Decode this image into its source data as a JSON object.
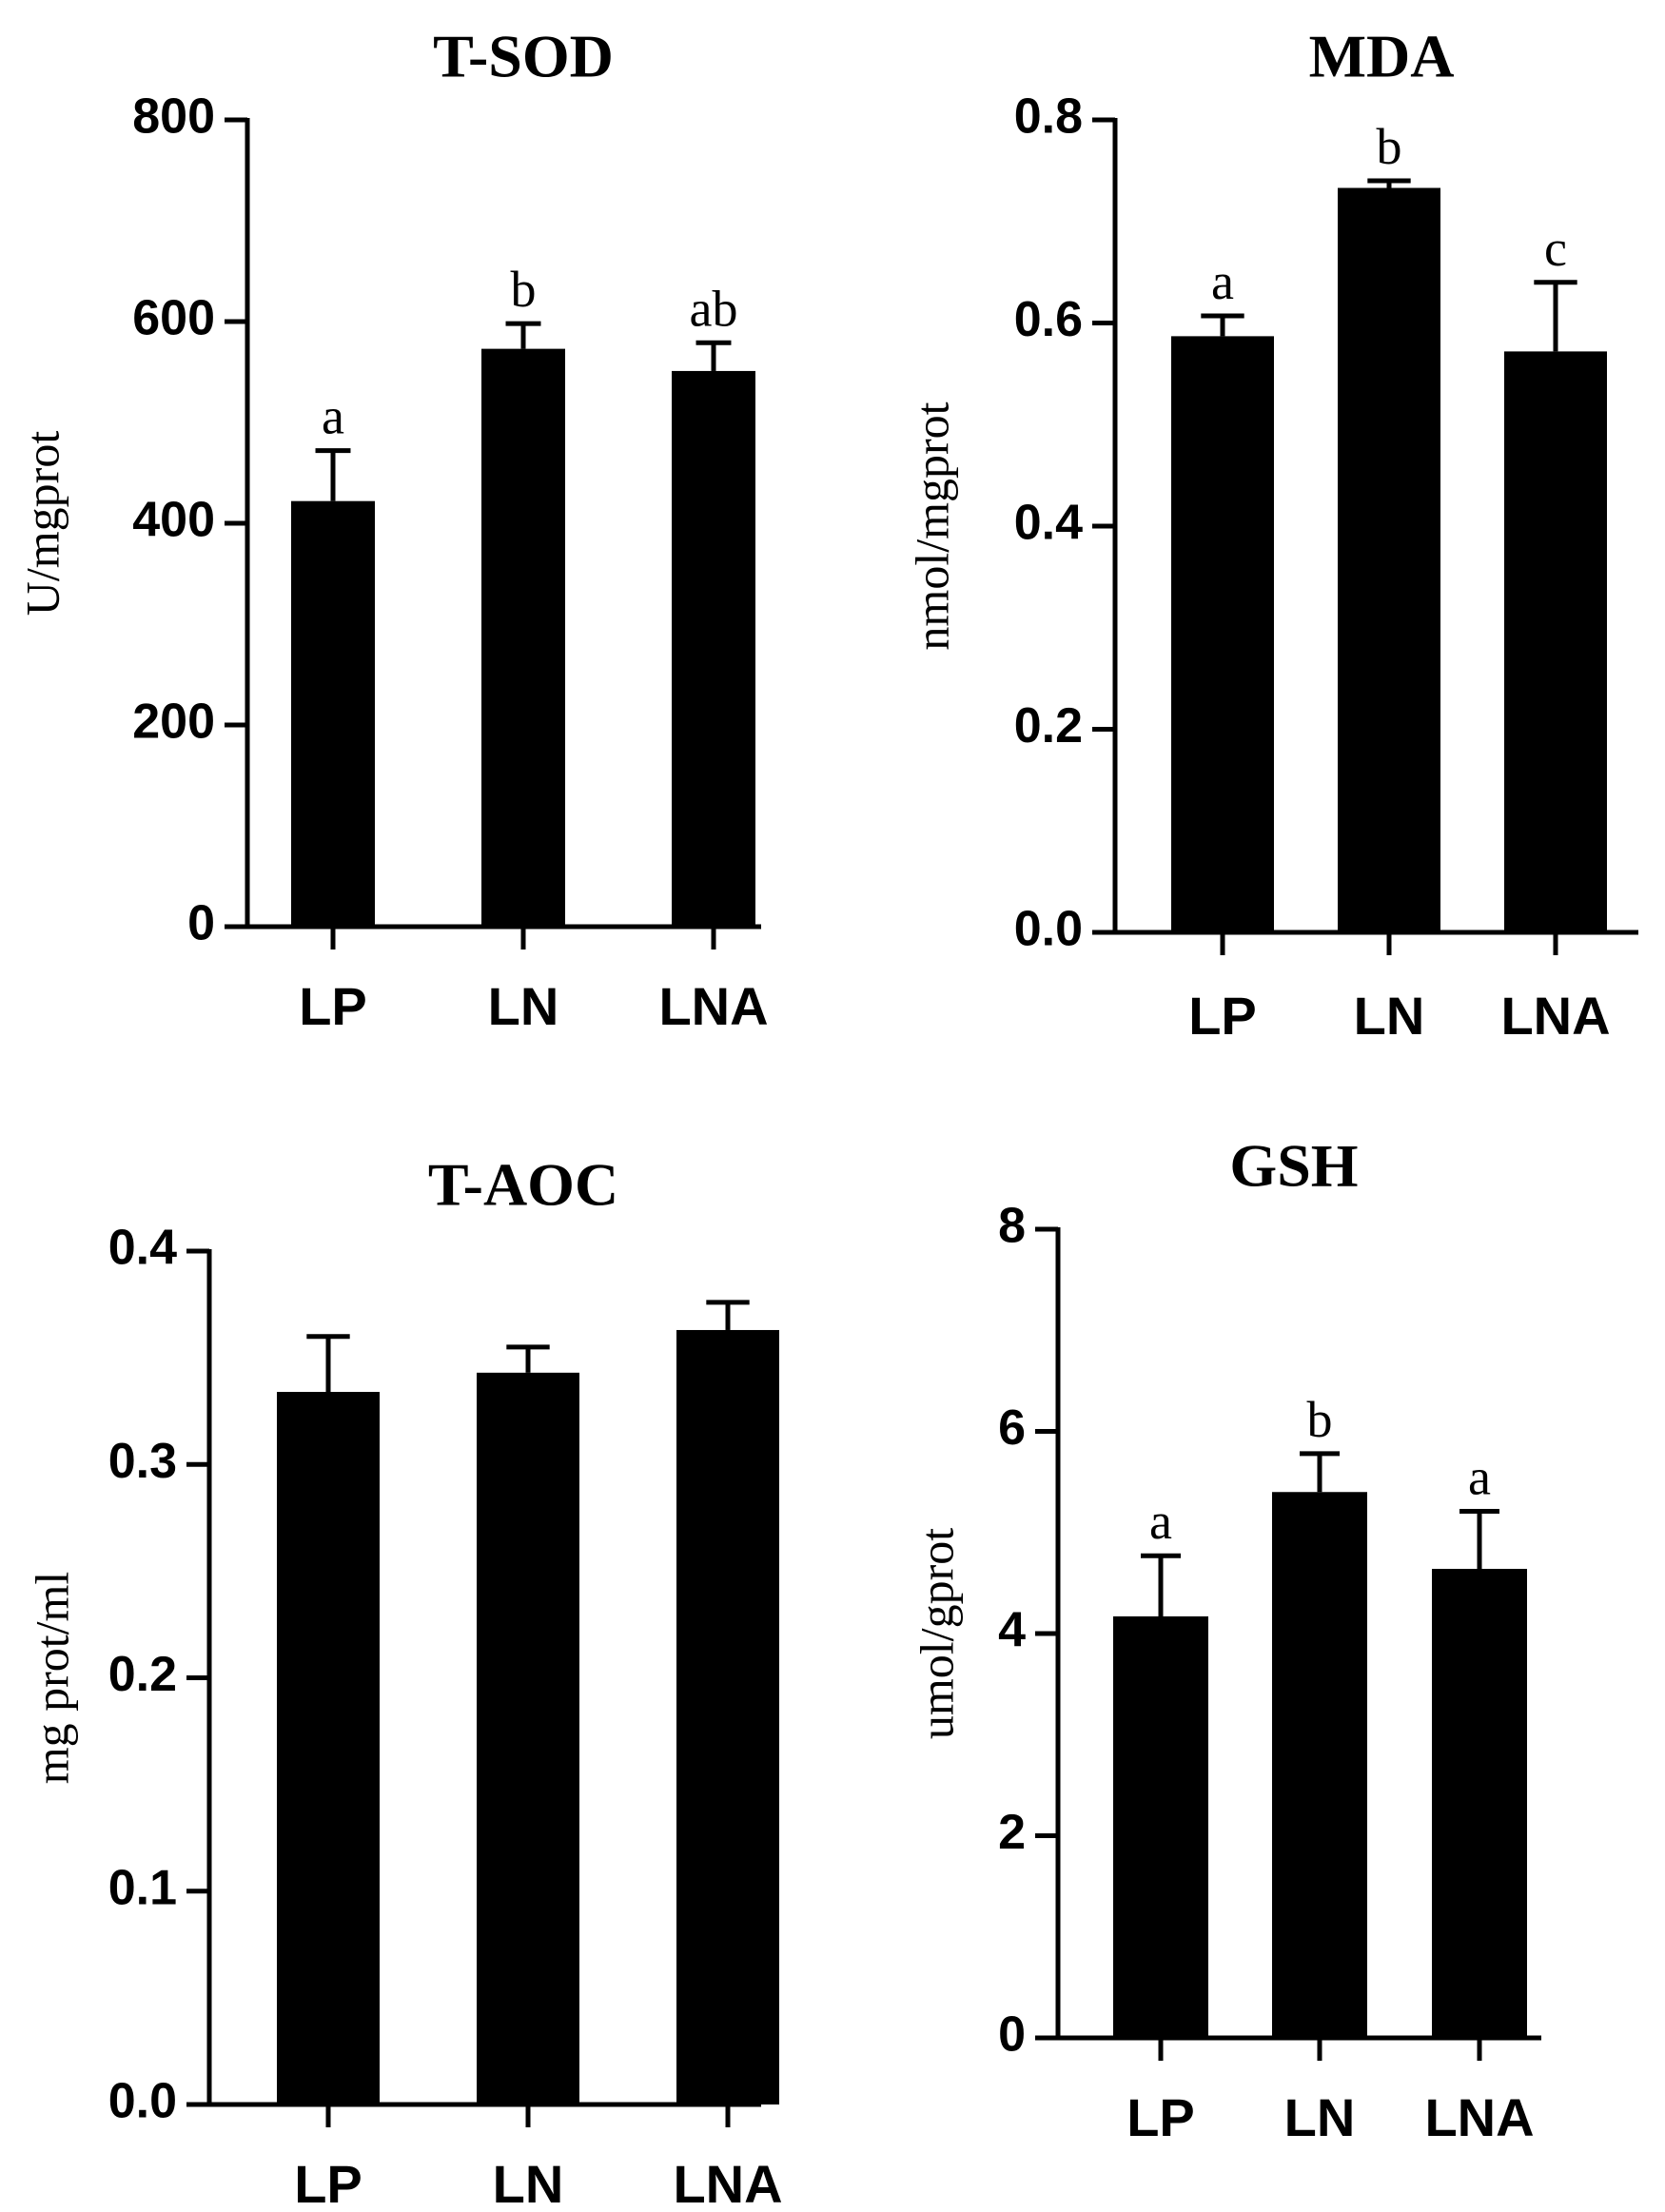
{
  "chart_data": [
    {
      "type": "bar",
      "title": "T-SOD",
      "ylabel": "U/mgprot",
      "xlabel": "",
      "categories": [
        "LP",
        "LN",
        "LNA"
      ],
      "values": [
        422,
        573,
        551
      ],
      "errors": [
        50,
        25,
        28
      ],
      "letters": [
        "a",
        "b",
        "ab"
      ],
      "ylim": [
        0,
        800
      ],
      "yticks": [
        0,
        200,
        400,
        600,
        800
      ],
      "ytick_labels": [
        "0",
        "200",
        "400",
        "600",
        "800"
      ],
      "grid": false,
      "bar_color": "#000000"
    },
    {
      "type": "bar",
      "title": "MDA",
      "ylabel": "nmol/mgprot",
      "xlabel": "",
      "categories": [
        "LP",
        "LN",
        "LNA"
      ],
      "values": [
        0.587,
        0.733,
        0.572
      ],
      "errors": [
        0.02,
        0.007,
        0.068
      ],
      "letters": [
        "a",
        "b",
        "c"
      ],
      "ylim": [
        0,
        0.8
      ],
      "yticks": [
        0,
        0.2,
        0.4,
        0.6,
        0.8
      ],
      "ytick_labels": [
        "0.0",
        "0.2",
        "0.4",
        "0.6",
        "0.8"
      ],
      "grid": false,
      "bar_color": "#000000"
    },
    {
      "type": "bar",
      "title": "T-AOC",
      "ylabel": "mg prot/ml",
      "xlabel": "",
      "categories": [
        "LP",
        "LN",
        "LNA"
      ],
      "values": [
        0.334,
        0.343,
        0.363
      ],
      "errors": [
        0.026,
        0.012,
        0.013
      ],
      "letters": [
        "",
        "",
        ""
      ],
      "ylim": [
        0,
        0.4
      ],
      "yticks": [
        0,
        0.1,
        0.2,
        0.3,
        0.4
      ],
      "ytick_labels": [
        "0.0",
        "0.1",
        "0.2",
        "0.3",
        "0.4"
      ],
      "grid": false,
      "bar_color": "#000000"
    },
    {
      "type": "bar",
      "title": "GSH",
      "ylabel": "umol/gprot",
      "xlabel": "",
      "categories": [
        "LP",
        "LN",
        "LNA"
      ],
      "values": [
        4.17,
        5.4,
        4.64
      ],
      "errors": [
        0.6,
        0.38,
        0.57
      ],
      "letters": [
        "a",
        "b",
        "a"
      ],
      "ylim": [
        0,
        8
      ],
      "yticks": [
        0,
        2,
        4,
        6,
        8
      ],
      "ytick_labels": [
        "0",
        "2",
        "4",
        "6",
        "8"
      ],
      "grid": false,
      "bar_color": "#000000"
    }
  ]
}
